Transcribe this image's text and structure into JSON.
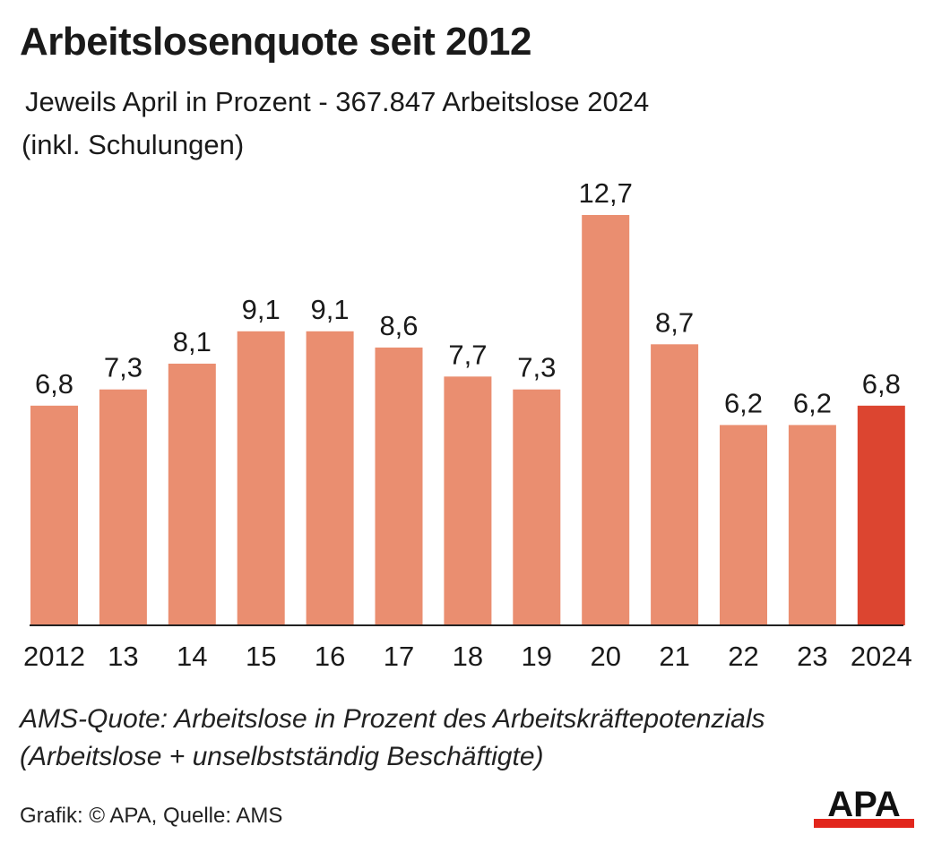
{
  "title": "Arbeitslosenquote seit 2012",
  "subtitle_line1": "Jeweils April in Prozent - 367.847 Arbeitslose 2024",
  "subtitle_line2": "(inkl. Schulungen)",
  "footnote_line1": "AMS-Quote: Arbeitslose in Prozent des Arbeitskräftepotenzials",
  "footnote_line2": "(Arbeitslose + unselbstständig Beschäftigte)",
  "credit": "Grafik: © APA, Quelle: AMS",
  "logo_text": "APA",
  "colors": {
    "bar": "#ea8e70",
    "highlight": "#dc4530",
    "logo_red": "#e2261c",
    "text": "#1a1a1a"
  },
  "chart_data": {
    "type": "bar",
    "categories": [
      "2012",
      "13",
      "14",
      "15",
      "16",
      "17",
      "18",
      "19",
      "20",
      "21",
      "22",
      "23",
      "2024"
    ],
    "values": [
      6.8,
      7.3,
      8.1,
      9.1,
      9.1,
      8.6,
      7.7,
      7.3,
      12.7,
      8.7,
      6.2,
      6.2,
      6.8
    ],
    "value_labels": [
      "6,8",
      "7,3",
      "8,1",
      "9,1",
      "9,1",
      "8,6",
      "7,7",
      "7,3",
      "12,7",
      "8,7",
      "6,2",
      "6,2",
      "6,8"
    ],
    "highlight_index": 12,
    "ylim": [
      0,
      12.7
    ],
    "grid": false,
    "legend": "none"
  }
}
